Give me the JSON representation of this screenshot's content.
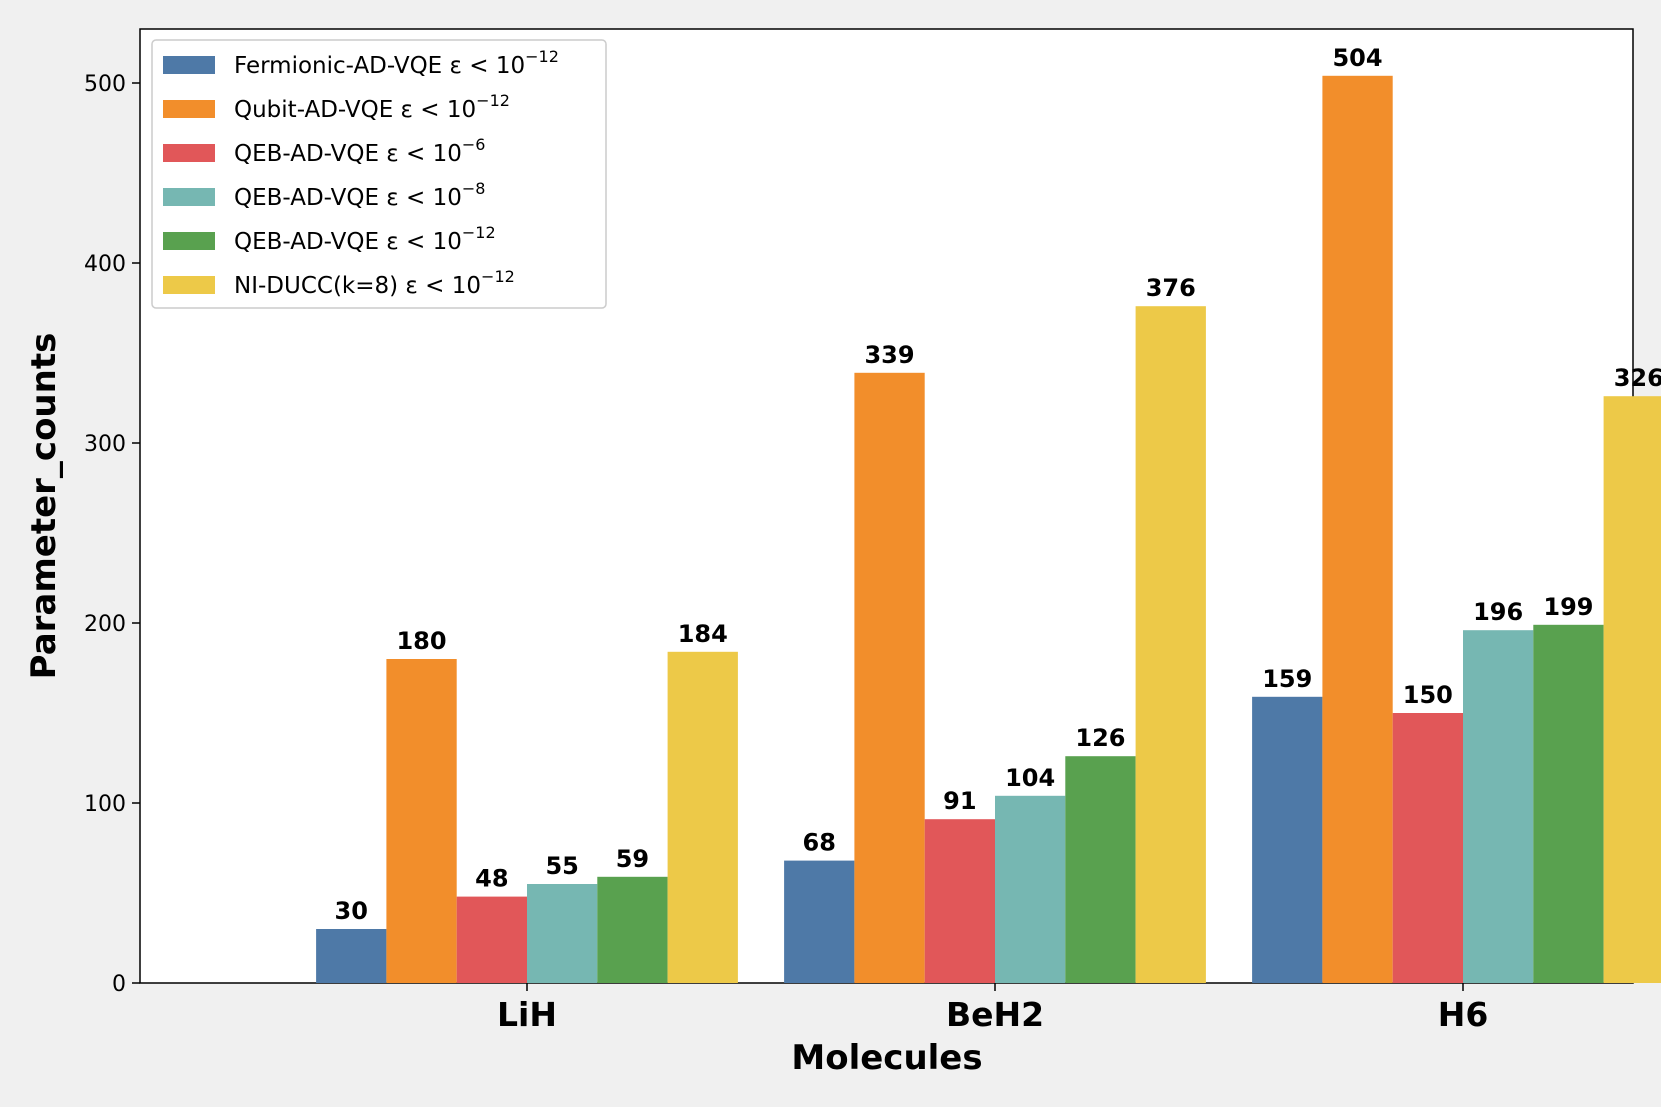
{
  "chart_data": {
    "type": "bar",
    "title": "",
    "xlabel": "Molecules",
    "ylabel": "Parameter_counts",
    "ylim": [
      0,
      530
    ],
    "yticks": [
      0,
      100,
      200,
      300,
      400,
      500
    ],
    "categories": [
      "LiH",
      "BeH2",
      "H6"
    ],
    "grid": false,
    "legend_position": "top-left",
    "series": [
      {
        "name": "Fermionic-AD-VQE",
        "threshold_base": "ε < 10",
        "threshold_exp": "−12",
        "color": "#4e79a7",
        "values": [
          30,
          68,
          159
        ]
      },
      {
        "name": "Qubit-AD-VQE",
        "threshold_base": "ε < 10",
        "threshold_exp": "−12",
        "color": "#f28e2b",
        "values": [
          180,
          339,
          504
        ]
      },
      {
        "name": "QEB-AD-VQE",
        "threshold_base": "ε < 10",
        "threshold_exp": "−6",
        "color": "#e15759",
        "values": [
          48,
          91,
          150
        ]
      },
      {
        "name": "QEB-AD-VQE",
        "threshold_base": "ε < 10",
        "threshold_exp": "−8",
        "color": "#76b7b2",
        "values": [
          55,
          104,
          196
        ]
      },
      {
        "name": "QEB-AD-VQE",
        "threshold_base": "ε < 10",
        "threshold_exp": "−12",
        "color": "#59a14f",
        "values": [
          59,
          126,
          199
        ]
      },
      {
        "name": "NI-DUCC(k=8)",
        "threshold_base": "ε < 10",
        "threshold_exp": "−12",
        "color": "#edc948",
        "values": [
          184,
          376,
          326
        ]
      }
    ]
  }
}
